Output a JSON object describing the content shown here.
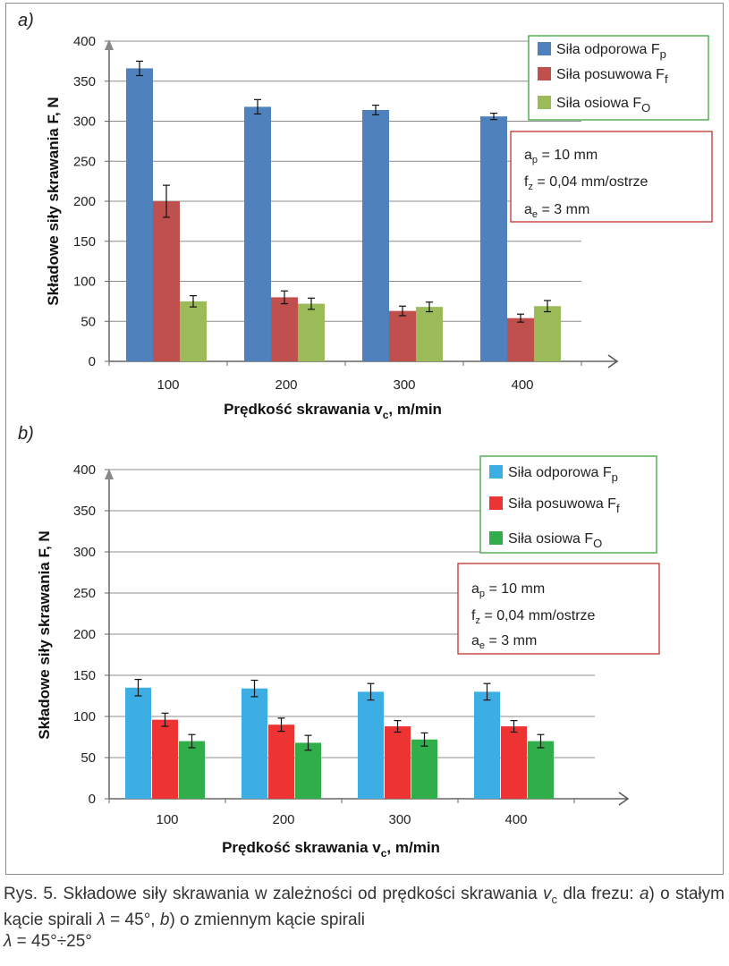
{
  "panels": [
    {
      "letter": "a)",
      "ylabel": "Składowe siły skrawania F, N",
      "xlabel_main": "Prędkość skrawania v",
      "xlabel_sub": "c",
      "xlabel_tail": ", m/min",
      "legend": [
        {
          "label": "Siła odporowa F",
          "sub": "p"
        },
        {
          "label": "Siła posuwowa F",
          "sub": "f"
        },
        {
          "label": "Siła osiowa F",
          "sub": "O"
        }
      ],
      "params": [
        {
          "pre": "a",
          "sub": "p",
          "post": " = 10 mm"
        },
        {
          "pre": "f",
          "sub": "z",
          "post": " = 0,04 mm/ostrze"
        },
        {
          "pre": "a",
          "sub": "e",
          "post": " = 3 mm"
        }
      ]
    },
    {
      "letter": "b)",
      "ylabel": "Składowe siły skrawania F, N",
      "xlabel_main": "Prędkość skrawania v",
      "xlabel_sub": "c",
      "xlabel_tail": ", m/min",
      "legend": [
        {
          "label": "Siła odporowa F",
          "sub": "p"
        },
        {
          "label": "Siła posuwowa F",
          "sub": "f"
        },
        {
          "label": "Siła osiowa F",
          "sub": "O"
        }
      ],
      "params": [
        {
          "pre": "a",
          "sub": "p",
          "post": " = 10 mm"
        },
        {
          "pre": "f",
          "sub": "z",
          "post": " = 0,04 mm/ostrze"
        },
        {
          "pre": "a",
          "sub": "e",
          "post": " = 3 mm"
        }
      ]
    }
  ],
  "caption": {
    "p1": "Rys. 5. Składowe siły skrawania w zależności od prędkości skrawania ",
    "v": "v",
    "vsub": "c",
    "p2": " dla frezu: ",
    "a": "a",
    "p3": ") o stałym kącie spirali ",
    "lambda1": "λ",
    "p4": " = 45°, ",
    "b": "b",
    "p5": ") o zmiennym kącie spirali ",
    "lambda2": "λ",
    "p6": " = 45°÷25°"
  },
  "chart_data": [
    {
      "type": "bar",
      "categories": [
        "100",
        "200",
        "300",
        "400"
      ],
      "ylim": [
        0,
        400
      ],
      "yticks": [
        0,
        50,
        100,
        150,
        200,
        250,
        300,
        350,
        400
      ],
      "grid": true,
      "legend_position": "top-right",
      "series": [
        {
          "name": "Siła odporowa Fp",
          "color": "#4f81bd",
          "values": [
            366,
            318,
            314,
            306
          ],
          "errors": [
            9,
            9,
            6,
            4
          ]
        },
        {
          "name": "Siła posuwowa Ff",
          "color": "#c0504d",
          "values": [
            200,
            80,
            63,
            54
          ],
          "errors": [
            20,
            8,
            6,
            5
          ]
        },
        {
          "name": "Siła osiowa FO",
          "color": "#9bbb59",
          "values": [
            75,
            72,
            68,
            69
          ],
          "errors": [
            7,
            7,
            6,
            7
          ]
        }
      ]
    },
    {
      "type": "bar",
      "categories": [
        "100",
        "200",
        "300",
        "400"
      ],
      "ylim": [
        0,
        400
      ],
      "yticks": [
        0,
        50,
        100,
        150,
        200,
        250,
        300,
        350,
        400
      ],
      "grid": true,
      "legend_position": "top-right",
      "series": [
        {
          "name": "Siła odporowa Fp",
          "color": "#3caee4",
          "values": [
            135,
            134,
            130,
            130
          ],
          "errors": [
            10,
            10,
            10,
            10
          ]
        },
        {
          "name": "Siła posuwowa Ff",
          "color": "#ee3433",
          "values": [
            96,
            90,
            88,
            88
          ],
          "errors": [
            8,
            8,
            7,
            7
          ]
        },
        {
          "name": "Siła osiowa FO",
          "color": "#2fae4a",
          "values": [
            70,
            68,
            72,
            70
          ],
          "errors": [
            8,
            9,
            8,
            8
          ]
        }
      ]
    }
  ]
}
